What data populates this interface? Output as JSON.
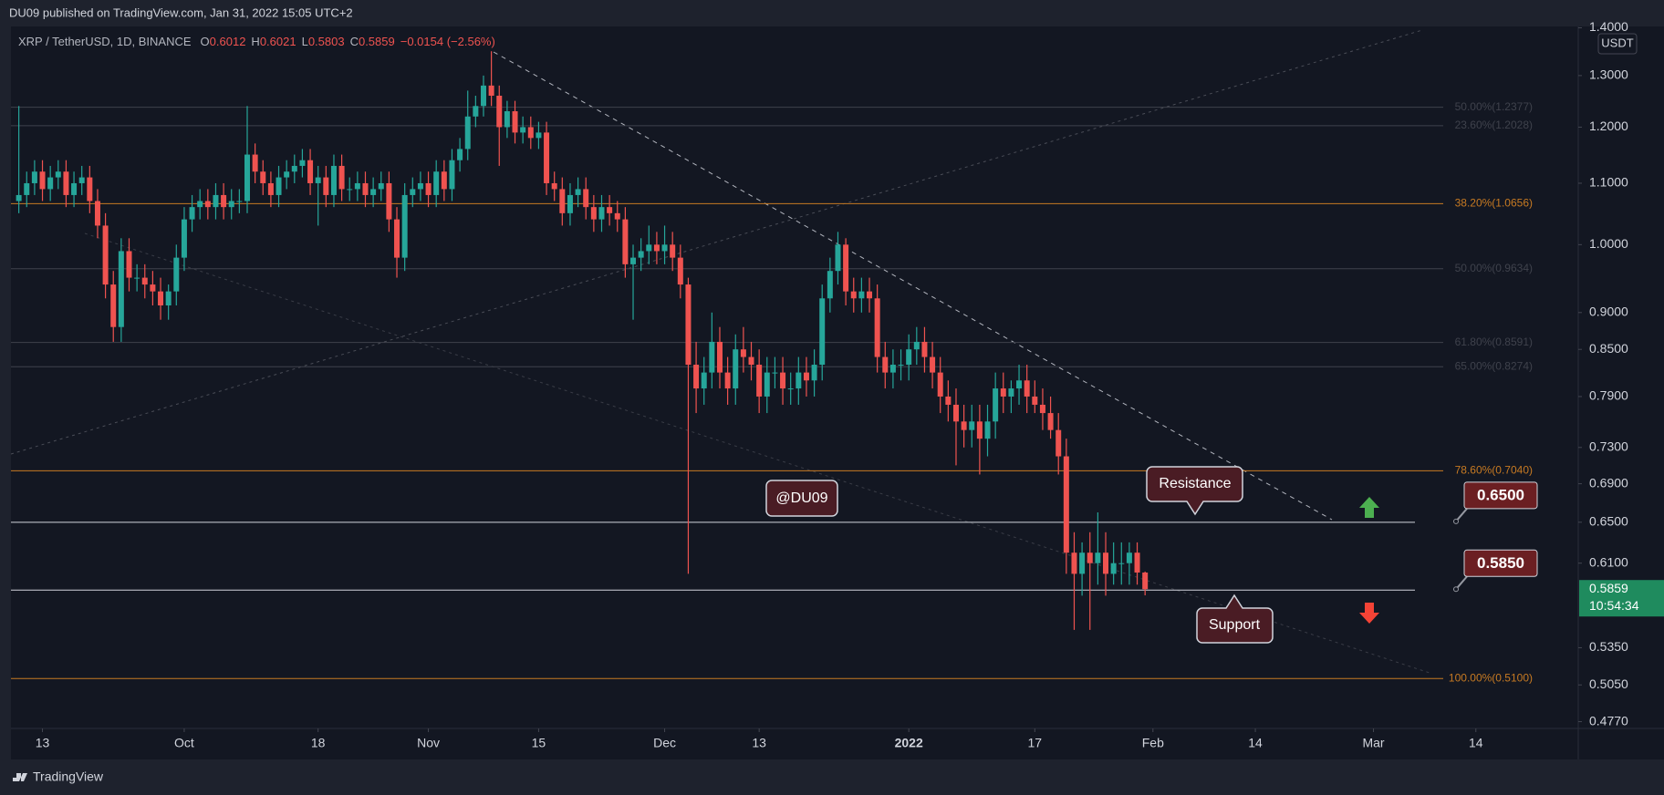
{
  "chart_data": {
    "type": "candlestick",
    "published": "DU09 published on TradingView.com, Jan 31, 2022 15:05 UTC+2",
    "symbol": "XRP / TetherUSD, 1D, BINANCE",
    "ohlc_prefixes": [
      "O",
      "H",
      "L",
      "C"
    ],
    "change": "−0.0154 (−2.56%)",
    "currency": "USDT",
    "countdown": "10:54:34",
    "brand": "TradingView",
    "watermark_label": "@DU09",
    "callouts": [
      "Resistance",
      "Support"
    ],
    "log_scale": true,
    "up_color": "#26a69a",
    "down_color": "#ef5350",
    "x": [
      "2021-09-10",
      "2021-09-11",
      "2021-09-12",
      "2021-09-13",
      "2021-09-14",
      "2021-09-15",
      "2021-09-16",
      "2021-09-17",
      "2021-09-18",
      "2021-09-19",
      "2021-09-20",
      "2021-09-21",
      "2021-09-22",
      "2021-09-23",
      "2021-09-24",
      "2021-09-25",
      "2021-09-26",
      "2021-09-27",
      "2021-09-28",
      "2021-09-29",
      "2021-09-30",
      "2021-10-01",
      "2021-10-02",
      "2021-10-03",
      "2021-10-04",
      "2021-10-05",
      "2021-10-06",
      "2021-10-07",
      "2021-10-08",
      "2021-10-09",
      "2021-10-10",
      "2021-10-11",
      "2021-10-12",
      "2021-10-13",
      "2021-10-14",
      "2021-10-15",
      "2021-10-16",
      "2021-10-17",
      "2021-10-18",
      "2021-10-19",
      "2021-10-20",
      "2021-10-21",
      "2021-10-22",
      "2021-10-23",
      "2021-10-24",
      "2021-10-25",
      "2021-10-26",
      "2021-10-27",
      "2021-10-28",
      "2021-10-29",
      "2021-10-30",
      "2021-10-31",
      "2021-11-01",
      "2021-11-02",
      "2021-11-03",
      "2021-11-04",
      "2021-11-05",
      "2021-11-06",
      "2021-11-07",
      "2021-11-08",
      "2021-11-09",
      "2021-11-10",
      "2021-11-11",
      "2021-11-12",
      "2021-11-13",
      "2021-11-14",
      "2021-11-15",
      "2021-11-16",
      "2021-11-17",
      "2021-11-18",
      "2021-11-19",
      "2021-11-20",
      "2021-11-21",
      "2021-11-22",
      "2021-11-23",
      "2021-11-24",
      "2021-11-25",
      "2021-11-26",
      "2021-11-27",
      "2021-11-28",
      "2021-11-29",
      "2021-11-30",
      "2021-12-01",
      "2021-12-02",
      "2021-12-03",
      "2021-12-04",
      "2021-12-05",
      "2021-12-06",
      "2021-12-07",
      "2021-12-08",
      "2021-12-09",
      "2021-12-10",
      "2021-12-11",
      "2021-12-12",
      "2021-12-13",
      "2021-12-14",
      "2021-12-15",
      "2021-12-16",
      "2021-12-17",
      "2021-12-18",
      "2021-12-19",
      "2021-12-20",
      "2021-12-21",
      "2021-12-22",
      "2021-12-23",
      "2021-12-24",
      "2021-12-25",
      "2021-12-26",
      "2021-12-27",
      "2021-12-28",
      "2021-12-29",
      "2021-12-30",
      "2021-12-31",
      "2022-01-01",
      "2022-01-02",
      "2022-01-03",
      "2022-01-04",
      "2022-01-05",
      "2022-01-06",
      "2022-01-07",
      "2022-01-08",
      "2022-01-09",
      "2022-01-10",
      "2022-01-11",
      "2022-01-12",
      "2022-01-13",
      "2022-01-14",
      "2022-01-15",
      "2022-01-16",
      "2022-01-17",
      "2022-01-18",
      "2022-01-19",
      "2022-01-20",
      "2022-01-21",
      "2022-01-22",
      "2022-01-23",
      "2022-01-24",
      "2022-01-25",
      "2022-01-26",
      "2022-01-27",
      "2022-01-28",
      "2022-01-29",
      "2022-01-30",
      "2022-01-31"
    ],
    "open": [
      1.07,
      1.08,
      1.1,
      1.12,
      1.09,
      1.11,
      1.12,
      1.08,
      1.1,
      1.11,
      1.07,
      1.03,
      0.94,
      0.88,
      0.99,
      0.95,
      0.95,
      0.94,
      0.93,
      0.91,
      0.93,
      0.98,
      1.04,
      1.06,
      1.07,
      1.06,
      1.08,
      1.06,
      1.07,
      1.07,
      1.15,
      1.12,
      1.1,
      1.08,
      1.11,
      1.12,
      1.13,
      1.14,
      1.1,
      1.11,
      1.08,
      1.13,
      1.09,
      1.09,
      1.1,
      1.08,
      1.09,
      1.1,
      1.04,
      0.98,
      1.08,
      1.09,
      1.1,
      1.08,
      1.12,
      1.09,
      1.14,
      1.16,
      1.22,
      1.24,
      1.28,
      1.26,
      1.2,
      1.23,
      1.19,
      1.2,
      1.18,
      1.19,
      1.1,
      1.09,
      1.05,
      1.08,
      1.09,
      1.06,
      1.04,
      1.06,
      1.05,
      1.04,
      0.97,
      0.98,
      0.99,
      1.0,
      0.99,
      1.0,
      0.98,
      0.94,
      0.83,
      0.8,
      0.82,
      0.86,
      0.82,
      0.8,
      0.85,
      0.84,
      0.83,
      0.79,
      0.82,
      0.82,
      0.8,
      0.8,
      0.82,
      0.81,
      0.83,
      0.92,
      0.96,
      1.0,
      0.93,
      0.92,
      0.93,
      0.92,
      0.84,
      0.82,
      0.83,
      0.83,
      0.85,
      0.86,
      0.84,
      0.82,
      0.79,
      0.78,
      0.76,
      0.75,
      0.76,
      0.74,
      0.76,
      0.8,
      0.79,
      0.8,
      0.81,
      0.79,
      0.78,
      0.77,
      0.75,
      0.72,
      0.62,
      0.6,
      0.62,
      0.61,
      0.62,
      0.6,
      0.61,
      0.61,
      0.62,
      0.6012
    ],
    "high": [
      1.24,
      1.12,
      1.14,
      1.14,
      1.13,
      1.14,
      1.14,
      1.12,
      1.13,
      1.13,
      1.09,
      1.05,
      0.96,
      1.01,
      1.01,
      0.97,
      0.97,
      0.96,
      0.95,
      0.94,
      1.0,
      1.06,
      1.08,
      1.09,
      1.09,
      1.1,
      1.1,
      1.09,
      1.09,
      1.24,
      1.17,
      1.14,
      1.12,
      1.13,
      1.14,
      1.15,
      1.16,
      1.16,
      1.13,
      1.13,
      1.15,
      1.15,
      1.11,
      1.12,
      1.12,
      1.11,
      1.12,
      1.12,
      1.06,
      1.1,
      1.11,
      1.12,
      1.12,
      1.14,
      1.14,
      1.16,
      1.18,
      1.27,
      1.26,
      1.3,
      1.35,
      1.28,
      1.25,
      1.25,
      1.22,
      1.22,
      1.21,
      1.21,
      1.12,
      1.11,
      1.1,
      1.11,
      1.11,
      1.08,
      1.08,
      1.08,
      1.07,
      1.06,
      1.0,
      1.01,
      1.03,
      1.02,
      1.03,
      1.02,
      1.0,
      0.95,
      0.86,
      0.84,
      0.9,
      0.88,
      0.84,
      0.87,
      0.88,
      0.86,
      0.85,
      0.84,
      0.84,
      0.84,
      0.82,
      0.84,
      0.84,
      0.85,
      0.94,
      0.98,
      1.02,
      1.01,
      0.95,
      0.95,
      0.95,
      0.94,
      0.86,
      0.85,
      0.85,
      0.87,
      0.88,
      0.88,
      0.86,
      0.84,
      0.81,
      0.8,
      0.78,
      0.78,
      0.78,
      0.78,
      0.82,
      0.82,
      0.81,
      0.83,
      0.83,
      0.81,
      0.8,
      0.79,
      0.77,
      0.74,
      0.64,
      0.63,
      0.64,
      0.66,
      0.64,
      0.63,
      0.63,
      0.63,
      0.63,
      0.6021
    ],
    "low": [
      1.05,
      1.06,
      1.08,
      1.07,
      1.07,
      1.09,
      1.06,
      1.06,
      1.08,
      1.05,
      1.01,
      0.92,
      0.86,
      0.86,
      0.93,
      0.93,
      0.92,
      0.91,
      0.89,
      0.89,
      0.91,
      0.96,
      1.02,
      1.04,
      1.04,
      1.04,
      1.04,
      1.04,
      1.05,
      1.05,
      1.1,
      1.08,
      1.06,
      1.06,
      1.09,
      1.1,
      1.11,
      1.08,
      1.03,
      1.06,
      1.06,
      1.07,
      1.07,
      1.07,
      1.06,
      1.06,
      1.07,
      1.02,
      0.95,
      0.96,
      1.06,
      1.07,
      1.06,
      1.06,
      1.07,
      1.07,
      1.12,
      1.14,
      1.2,
      1.22,
      1.24,
      1.13,
      1.18,
      1.17,
      1.17,
      1.16,
      1.16,
      1.08,
      1.07,
      1.03,
      1.03,
      1.06,
      1.04,
      1.02,
      1.02,
      1.03,
      1.02,
      0.95,
      0.89,
      0.96,
      0.97,
      0.97,
      0.97,
      0.96,
      0.92,
      0.6,
      0.77,
      0.78,
      0.8,
      0.8,
      0.78,
      0.78,
      0.82,
      0.81,
      0.77,
      0.77,
      0.8,
      0.78,
      0.78,
      0.78,
      0.79,
      0.79,
      0.81,
      0.9,
      0.94,
      0.91,
      0.9,
      0.9,
      0.9,
      0.82,
      0.8,
      0.8,
      0.81,
      0.81,
      0.83,
      0.82,
      0.8,
      0.77,
      0.76,
      0.71,
      0.73,
      0.73,
      0.7,
      0.72,
      0.74,
      0.77,
      0.77,
      0.78,
      0.77,
      0.77,
      0.75,
      0.74,
      0.7,
      0.6,
      0.55,
      0.58,
      0.55,
      0.59,
      0.58,
      0.59,
      0.59,
      0.59,
      0.59,
      0.5803
    ],
    "close": [
      1.08,
      1.1,
      1.12,
      1.09,
      1.11,
      1.12,
      1.08,
      1.1,
      1.11,
      1.07,
      1.03,
      0.94,
      0.88,
      0.99,
      0.95,
      0.95,
      0.94,
      0.93,
      0.91,
      0.93,
      0.98,
      1.04,
      1.06,
      1.07,
      1.06,
      1.08,
      1.06,
      1.07,
      1.07,
      1.15,
      1.12,
      1.1,
      1.08,
      1.11,
      1.12,
      1.13,
      1.14,
      1.1,
      1.11,
      1.08,
      1.13,
      1.09,
      1.09,
      1.1,
      1.08,
      1.09,
      1.1,
      1.04,
      0.98,
      1.08,
      1.09,
      1.1,
      1.08,
      1.12,
      1.09,
      1.14,
      1.16,
      1.22,
      1.24,
      1.28,
      1.26,
      1.2,
      1.23,
      1.19,
      1.2,
      1.18,
      1.19,
      1.1,
      1.09,
      1.05,
      1.08,
      1.09,
      1.06,
      1.04,
      1.06,
      1.05,
      1.04,
      0.97,
      0.98,
      0.99,
      1.0,
      0.99,
      1.0,
      0.98,
      0.94,
      0.83,
      0.8,
      0.82,
      0.86,
      0.82,
      0.8,
      0.85,
      0.84,
      0.83,
      0.79,
      0.82,
      0.82,
      0.8,
      0.8,
      0.82,
      0.81,
      0.83,
      0.92,
      0.96,
      1.0,
      0.93,
      0.92,
      0.93,
      0.92,
      0.84,
      0.82,
      0.83,
      0.83,
      0.85,
      0.86,
      0.84,
      0.82,
      0.79,
      0.78,
      0.76,
      0.75,
      0.76,
      0.74,
      0.76,
      0.8,
      0.79,
      0.8,
      0.81,
      0.79,
      0.78,
      0.77,
      0.75,
      0.72,
      0.62,
      0.6,
      0.62,
      0.61,
      0.62,
      0.6,
      0.61,
      0.61,
      0.62,
      0.6012,
      0.5859
    ],
    "xlim": [
      "2021-09-09",
      "2022-03-27"
    ],
    "xticks": [
      {
        "value": "2021-09-13",
        "label": "13"
      },
      {
        "value": "2021-10-01",
        "label": "Oct"
      },
      {
        "value": "2021-10-18",
        "label": "18"
      },
      {
        "value": "2021-11-01",
        "label": "Nov"
      },
      {
        "value": "2021-11-15",
        "label": "15"
      },
      {
        "value": "2021-12-01",
        "label": "Dec"
      },
      {
        "value": "2021-12-13",
        "label": "13"
      },
      {
        "value": "2022-01-01",
        "label": "2022"
      },
      {
        "value": "2022-01-17",
        "label": "17"
      },
      {
        "value": "2022-02-01",
        "label": "Feb"
      },
      {
        "value": "2022-02-14",
        "label": "14"
      },
      {
        "value": "2022-03-01",
        "label": "Mar"
      },
      {
        "value": "2022-03-14",
        "label": "14"
      }
    ],
    "ylim": [
      0.472,
      1.403
    ],
    "yticks": [
      {
        "value": 1.4,
        "label": "1.4000"
      },
      {
        "value": 1.3,
        "label": "1.3000"
      },
      {
        "value": 1.2,
        "label": "1.2000"
      },
      {
        "value": 1.1,
        "label": "1.1000"
      },
      {
        "value": 1,
        "label": "1.0000"
      },
      {
        "value": 0.9,
        "label": "0.9000"
      },
      {
        "value": 0.85,
        "label": "0.8500"
      },
      {
        "value": 0.79,
        "label": "0.7900"
      },
      {
        "value": 0.73,
        "label": "0.7300"
      },
      {
        "value": 0.69,
        "label": "0.6900"
      },
      {
        "value": 0.65,
        "label": "0.6500"
      },
      {
        "value": 0.61,
        "label": "0.6100"
      },
      {
        "value": 0.535,
        "label": "0.5350"
      },
      {
        "value": 0.505,
        "label": "0.5050"
      },
      {
        "value": 0.477,
        "label": "0.4770"
      }
    ],
    "fib_levels": [
      {
        "label": "50.00%(1.2377)",
        "value": 1.2377,
        "color": "#3f424c"
      },
      {
        "label": "23.60%(1.2028)",
        "value": 1.2028,
        "color": "#3f424c"
      },
      {
        "label": "38.20%(1.0656)",
        "value": 1.0656,
        "color": "#c77a22"
      },
      {
        "label": "50.00%(0.9634)",
        "value": 0.9634,
        "color": "#3f424c"
      },
      {
        "label": "61.80%(0.8591)",
        "value": 0.8591,
        "color": "#3f424c"
      },
      {
        "label": "65.00%(0.8274)",
        "value": 0.8274,
        "color": "#3f424c"
      },
      {
        "label": "78.60%(0.7040)",
        "value": 0.704,
        "color": "#c77a22"
      },
      {
        "label": "100.00%(0.5100)",
        "value": 0.51,
        "color": "#c77a22"
      }
    ],
    "levels": [
      {
        "value": 0.65,
        "label": "0.6500"
      },
      {
        "value": 0.585,
        "label": "0.5850"
      }
    ]
  }
}
